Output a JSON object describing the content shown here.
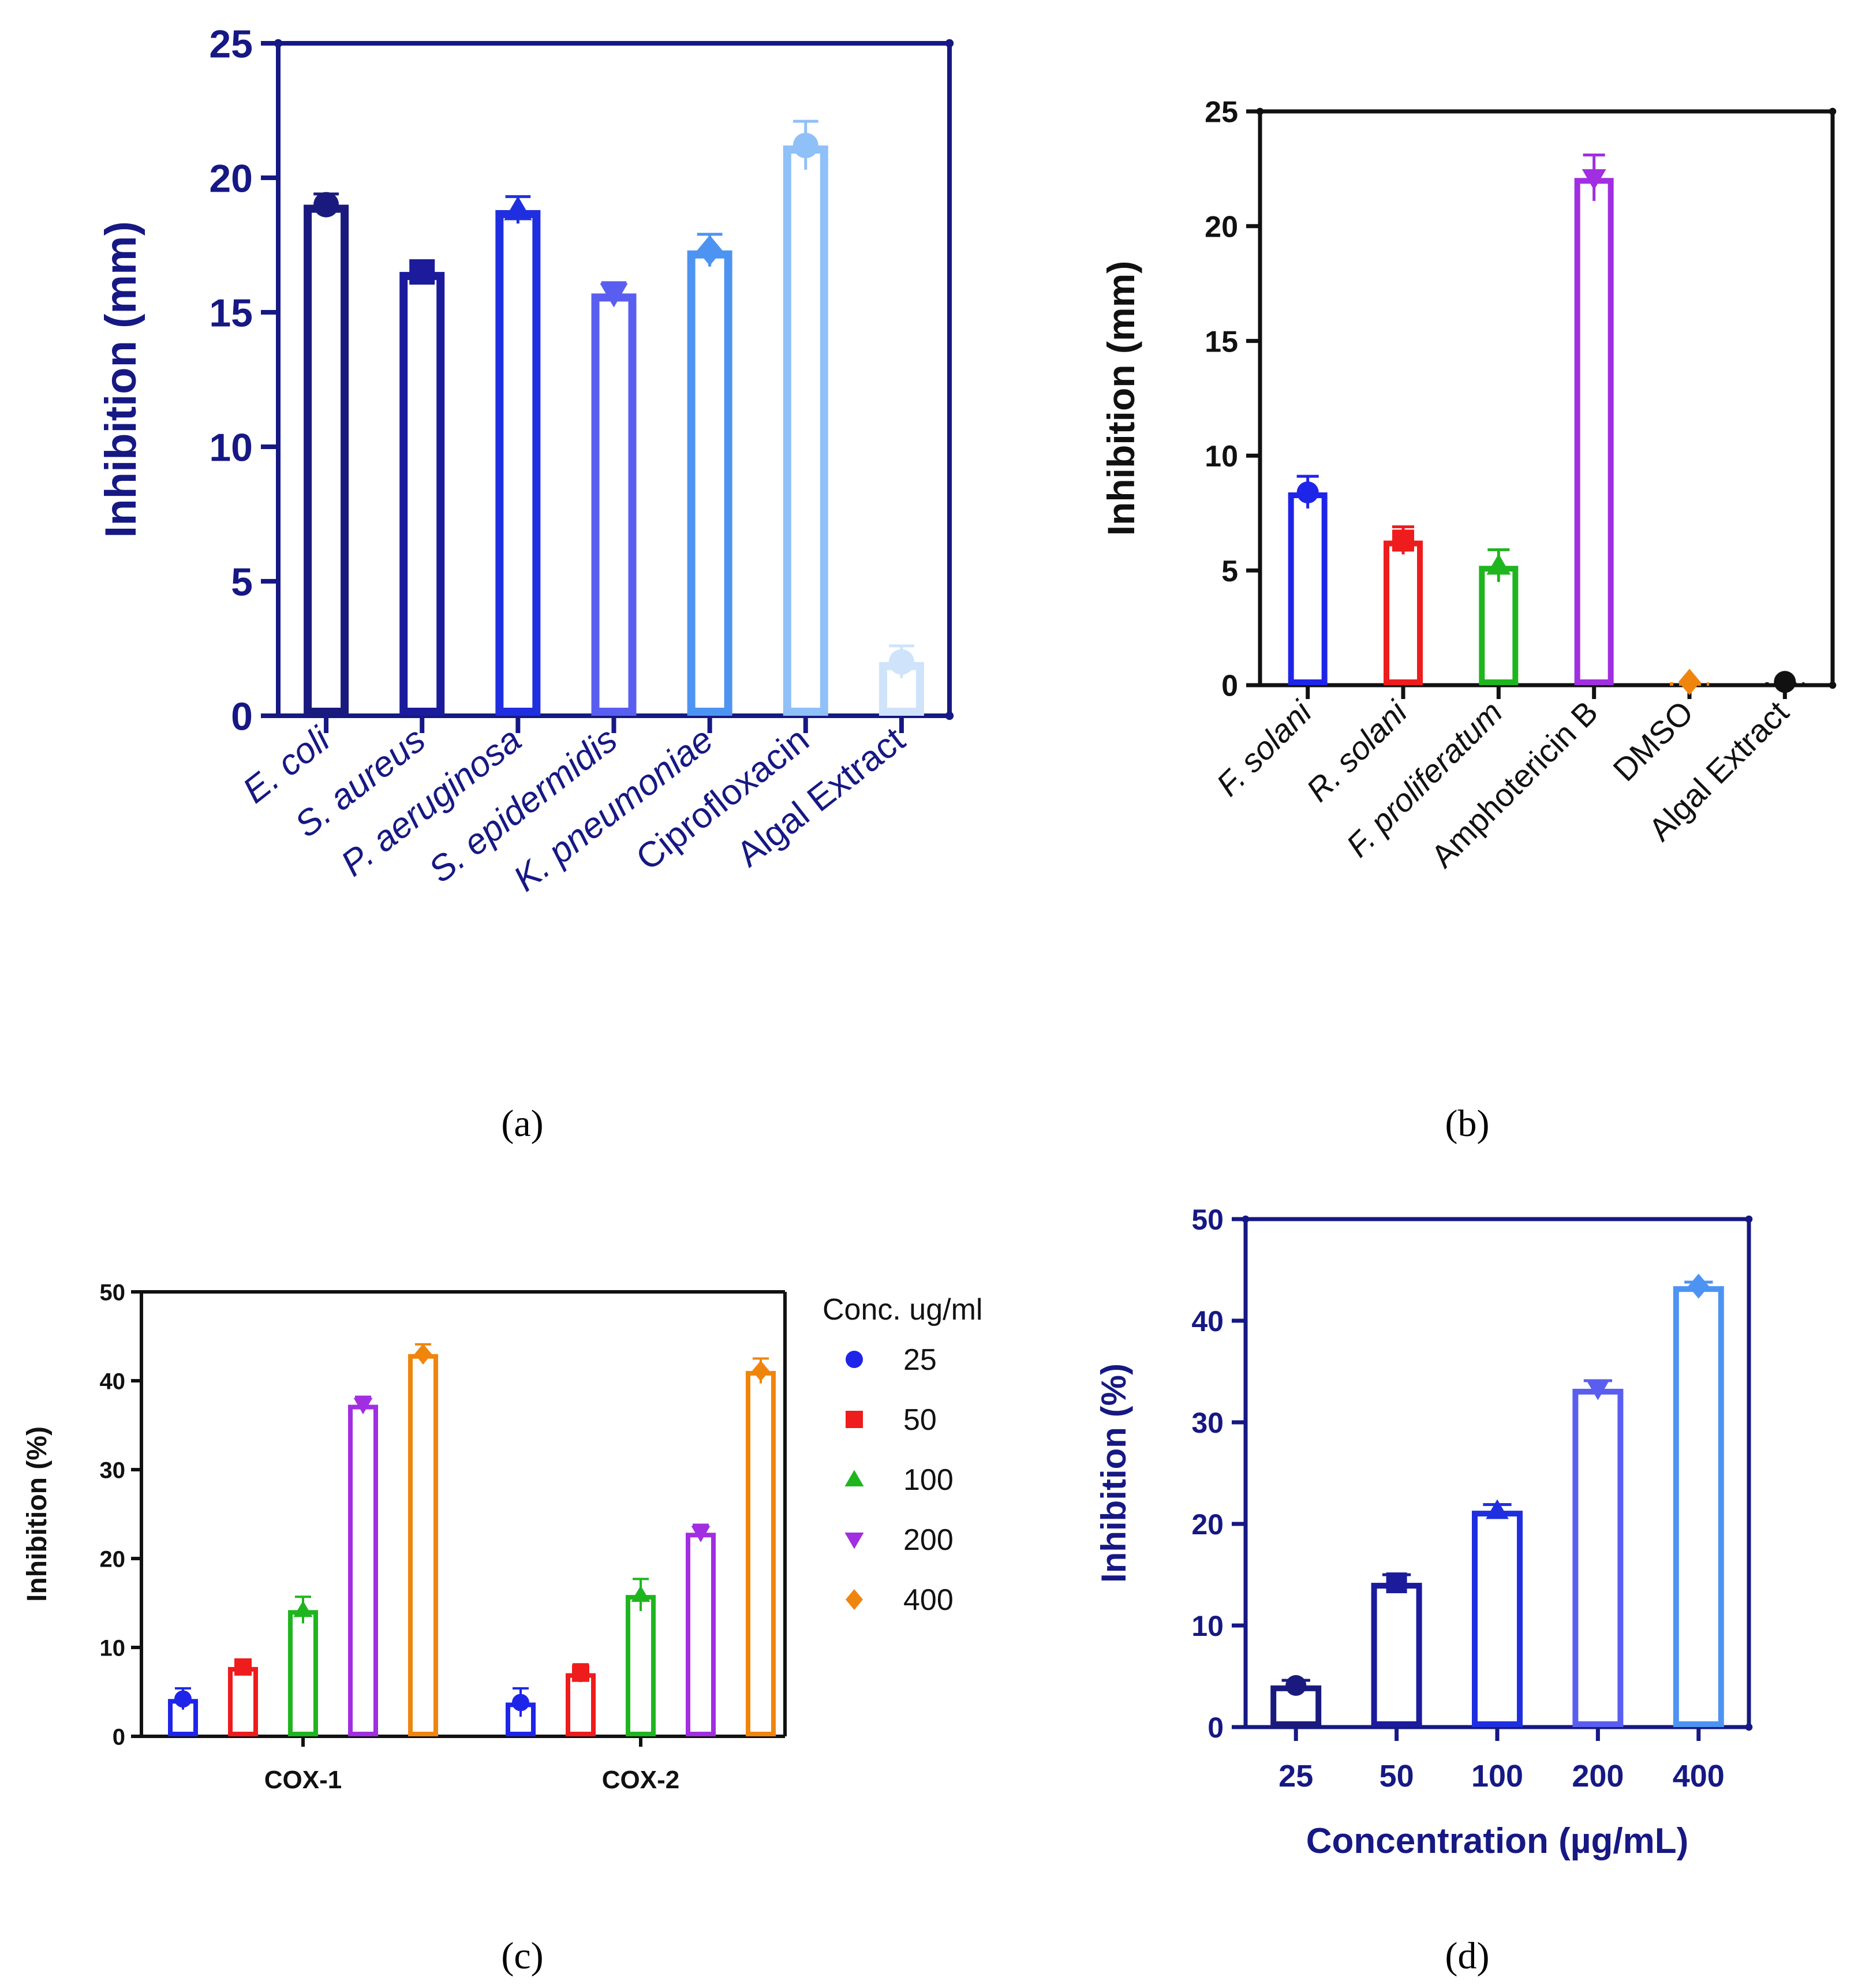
{
  "figure": {
    "panel_labels": [
      "(a)",
      "(b)",
      "(c)",
      "(d)"
    ]
  },
  "chart_data": [
    {
      "panel": "(a)",
      "type": "bar",
      "title": "",
      "ylabel": "Inhibition (mm)",
      "xlabel": "",
      "ylim": [
        0,
        25
      ],
      "yticks": [
        "0",
        "5",
        "10",
        "15",
        "20",
        "25"
      ],
      "categories": [
        {
          "text": "E. coli",
          "italic": true
        },
        {
          "text": "S. aureus",
          "italic": true
        },
        {
          "text": "P. aeruginosa",
          "italic": true
        },
        {
          "text": "S. epidermidis",
          "italic": true
        },
        {
          "text": "K. pneumoniae",
          "italic": true
        },
        {
          "text": "Ciprofloxacin",
          "italic": false
        },
        {
          "text": "Algal Extract",
          "italic": false
        }
      ],
      "values": [
        19.0,
        16.5,
        18.8,
        15.7,
        17.3,
        21.2,
        2.0
      ],
      "errors": [
        0.4,
        0.4,
        0.5,
        0.4,
        0.6,
        0.9,
        0.6
      ],
      "markers": [
        "circle",
        "square",
        "triangle-up",
        "triangle-down",
        "diamond",
        "circle",
        "circle"
      ],
      "colors": [
        "#1a1a7e",
        "#1b1b9c",
        "#1f2fe0",
        "#5a5ef0",
        "#4d94f2",
        "#8fc0f8",
        "#cfe3fa"
      ],
      "axis_color": "#161883"
    },
    {
      "panel": "(b)",
      "type": "bar",
      "title": "",
      "ylabel": "Inhibition (mm)",
      "xlabel": "",
      "ylim": [
        0,
        25
      ],
      "yticks": [
        "0",
        "5",
        "10",
        "15",
        "20",
        "25"
      ],
      "categories": [
        {
          "text": "F. solani",
          "italic": true
        },
        {
          "text": "R. solani",
          "italic": true
        },
        {
          "text": "F. proliferatum",
          "italic": true
        },
        {
          "text": "Amphotericin B",
          "italic": false
        },
        {
          "text": "DMSO",
          "italic": false
        },
        {
          "text": "Algal Extract",
          "italic": false
        }
      ],
      "values": [
        8.4,
        6.3,
        5.2,
        22.1,
        0.0,
        0.1
      ],
      "errors": [
        0.7,
        0.6,
        0.7,
        1.0,
        0.0,
        0.0
      ],
      "markers": [
        "circle",
        "square",
        "triangle-up",
        "triangle-down",
        "diamond",
        "circle"
      ],
      "colors": [
        "#1f25e8",
        "#ee1c1c",
        "#1fb51f",
        "#a12ee0",
        "#f0850e",
        "#111111"
      ],
      "axis_color": "#111111"
    },
    {
      "panel": "(c)",
      "type": "bar",
      "title": "",
      "ylabel": "Inhibition (%)",
      "xlabel": "",
      "ylim": [
        0,
        50
      ],
      "yticks": [
        "0",
        "10",
        "20",
        "30",
        "40",
        "50"
      ],
      "categories": [
        "COX-1",
        "COX-2"
      ],
      "legend_title": "Conc. ug/ml",
      "legend_position": "right",
      "series": [
        {
          "name": "25",
          "values": [
            4.2,
            3.8
          ],
          "errors": [
            1.2,
            1.6
          ],
          "marker": "circle",
          "color": "#1f25e8"
        },
        {
          "name": "50",
          "values": [
            7.8,
            7.1
          ],
          "errors": [
            0.8,
            1.0
          ],
          "marker": "square",
          "color": "#ee1c1c"
        },
        {
          "name": "100",
          "values": [
            14.2,
            15.9
          ],
          "errors": [
            1.5,
            1.8
          ],
          "marker": "triangle-up",
          "color": "#1fb51f"
        },
        {
          "name": "200",
          "values": [
            37.3,
            22.9
          ],
          "errors": [
            0.9,
            0.9
          ],
          "marker": "triangle-down",
          "color": "#a12ee0"
        },
        {
          "name": "400",
          "values": [
            43.0,
            41.1
          ],
          "errors": [
            1.1,
            1.4
          ],
          "marker": "diamond",
          "color": "#f0850e"
        }
      ],
      "axis_color": "#111111"
    },
    {
      "panel": "(d)",
      "type": "bar",
      "title": "",
      "ylabel": "Inhibition (%)",
      "xlabel": "Concentration (µg/mL)",
      "ylim": [
        0,
        50
      ],
      "yticks": [
        "0",
        "10",
        "20",
        "30",
        "40",
        "50"
      ],
      "categories": [
        {
          "text": "25",
          "italic": false
        },
        {
          "text": "50",
          "italic": false
        },
        {
          "text": "100",
          "italic": false
        },
        {
          "text": "200",
          "italic": false
        },
        {
          "text": "400",
          "italic": false
        }
      ],
      "values": [
        4.1,
        14.2,
        21.3,
        33.3,
        43.4
      ],
      "errors": [
        0.5,
        0.8,
        0.6,
        0.8,
        0.4
      ],
      "markers": [
        "circle",
        "square",
        "triangle-up",
        "triangle-down",
        "diamond"
      ],
      "colors": [
        "#1a1a7e",
        "#1b1b9c",
        "#1f2fe0",
        "#5a5ef0",
        "#4d94f2"
      ],
      "axis_color": "#161883"
    }
  ]
}
